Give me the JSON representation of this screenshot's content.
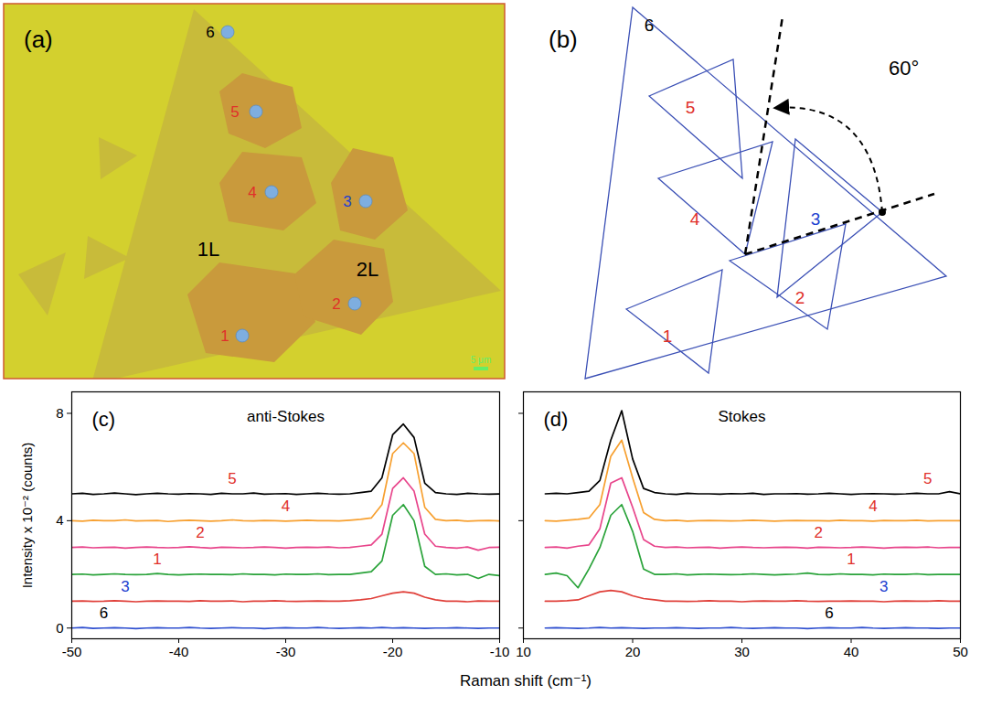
{
  "panel_a": {
    "type": "image",
    "label": "(a)",
    "points": [
      {
        "label": "1",
        "color": "#e0302a"
      },
      {
        "label": "2",
        "color": "#e0302a"
      },
      {
        "label": "3",
        "color": "#2040d0"
      },
      {
        "label": "4",
        "color": "#e0302a"
      },
      {
        "label": "5",
        "color": "#e0302a"
      },
      {
        "label": "6",
        "color": "#000000"
      }
    ],
    "regions": [
      "1L",
      "2L"
    ],
    "scale_bar": "5 μm"
  },
  "panel_b": {
    "type": "diagram",
    "label": "(b)",
    "triangles": [
      {
        "label": "1",
        "color": "#e0302a"
      },
      {
        "label": "2",
        "color": "#e0302a"
      },
      {
        "label": "3",
        "color": "#2040d0"
      },
      {
        "label": "4",
        "color": "#e0302a"
      },
      {
        "label": "5",
        "color": "#e0302a"
      },
      {
        "label": "6",
        "color": "#000000"
      }
    ],
    "angle_label": "60°"
  },
  "shared_xlabel": "Raman shift (cm⁻¹)",
  "chart_data": [
    {
      "type": "line",
      "panel_label": "(c)",
      "title": "anti-Stokes",
      "ylabel": "Intensity x 10⁻² (counts)",
      "xlim": [
        -50,
        -10
      ],
      "ylim": [
        -0.4,
        8.8
      ],
      "xticks": [
        -50,
        -40,
        -30,
        -20,
        -10
      ],
      "yticks": [
        0,
        4,
        8
      ],
      "x": [
        -50,
        -49,
        -48,
        -47,
        -46,
        -45,
        -44,
        -43,
        -42,
        -41,
        -40,
        -39,
        -38,
        -37,
        -36,
        -35,
        -34,
        -33,
        -32,
        -31,
        -30,
        -29,
        -28,
        -27,
        -26,
        -25,
        -24,
        -23,
        -22,
        -21,
        -20,
        -19,
        -18,
        -17,
        -16,
        -15,
        -14,
        -13,
        -12,
        -11,
        -10
      ],
      "series": [
        {
          "name": "5",
          "color": "#000000",
          "values": [
            5.0,
            5.02,
            4.98,
            5.0,
            5.03,
            5.0,
            4.97,
            5.0,
            5.02,
            5.0,
            4.99,
            5.01,
            5.0,
            4.98,
            5.02,
            5.0,
            5.0,
            5.03,
            4.99,
            5.0,
            5.01,
            4.98,
            5.0,
            5.02,
            5.0,
            4.99,
            5.0,
            5.05,
            5.1,
            5.6,
            7.2,
            7.6,
            7.1,
            5.4,
            5.05,
            5.0,
            4.98,
            5.02,
            5.0,
            4.99,
            5.0
          ]
        },
        {
          "name": "4",
          "color": "#f7a030",
          "values": [
            4.0,
            3.98,
            4.02,
            4.0,
            4.0,
            4.03,
            3.99,
            4.0,
            4.01,
            3.97,
            4.0,
            4.02,
            4.0,
            3.98,
            4.0,
            4.03,
            4.0,
            3.99,
            4.01,
            4.0,
            3.98,
            4.0,
            4.02,
            4.0,
            4.0,
            3.99,
            4.02,
            4.05,
            4.1,
            4.6,
            6.5,
            6.9,
            6.5,
            4.5,
            4.05,
            4.0,
            4.02,
            3.98,
            4.0,
            4.01,
            3.99
          ]
        },
        {
          "name": "2",
          "color": "#e8458b",
          "values": [
            3.0,
            3.02,
            2.99,
            3.0,
            3.01,
            2.98,
            3.0,
            3.02,
            3.0,
            2.99,
            3.0,
            3.03,
            3.0,
            2.98,
            3.01,
            3.0,
            2.99,
            3.0,
            3.02,
            3.0,
            2.98,
            3.0,
            3.01,
            3.0,
            3.02,
            2.99,
            3.0,
            3.05,
            3.1,
            3.5,
            5.2,
            5.6,
            5.1,
            3.5,
            3.05,
            3.0,
            2.98,
            3.02,
            2.9,
            3.0,
            3.01
          ]
        },
        {
          "name": "1",
          "color": "#2aa33a",
          "values": [
            2.0,
            2.01,
            1.98,
            2.0,
            2.02,
            2.0,
            1.99,
            2.0,
            2.03,
            2.0,
            1.98,
            2.0,
            2.01,
            2.0,
            2.0,
            1.99,
            2.02,
            2.0,
            2.0,
            1.98,
            2.01,
            2.0,
            2.0,
            2.02,
            1.99,
            2.0,
            2.0,
            2.05,
            2.1,
            2.5,
            4.2,
            4.6,
            4.0,
            2.3,
            2.0,
            2.02,
            1.98,
            2.0,
            1.85,
            2.0,
            1.95
          ]
        },
        {
          "name": "3",
          "color": "#e0403a",
          "values": [
            1.0,
            1.01,
            0.99,
            1.0,
            1.02,
            1.0,
            0.98,
            1.0,
            1.01,
            1.0,
            1.0,
            0.99,
            1.02,
            1.0,
            1.0,
            1.01,
            0.98,
            1.0,
            1.0,
            1.02,
            1.0,
            0.99,
            1.0,
            1.01,
            1.0,
            1.0,
            1.02,
            1.05,
            1.1,
            1.2,
            1.3,
            1.35,
            1.3,
            1.15,
            1.05,
            1.0,
            1.0,
            0.98,
            1.01,
            1.0,
            1.0
          ]
        },
        {
          "name": "6",
          "color": "#3050d0",
          "values": [
            0.0,
            0.02,
            -0.01,
            0.0,
            0.01,
            0.0,
            -0.02,
            0.0,
            0.01,
            0.0,
            0.0,
            0.02,
            0.0,
            -0.01,
            0.0,
            0.01,
            0.0,
            0.0,
            -0.02,
            0.0,
            0.01,
            0.0,
            0.0,
            0.02,
            0.0,
            -0.01,
            0.0,
            0.01,
            0.0,
            0.02,
            0.0,
            0.01,
            0.0,
            -0.01,
            0.0,
            0.0,
            0.01,
            0.0,
            -0.01,
            0.0,
            0.0
          ]
        }
      ],
      "annotations": [
        {
          "text": "5",
          "x": -35,
          "y": 5.55,
          "color": "#e0302a"
        },
        {
          "text": "4",
          "x": -30,
          "y": 4.55,
          "color": "#e0302a"
        },
        {
          "text": "2",
          "x": -38,
          "y": 3.55,
          "color": "#e0302a"
        },
        {
          "text": "1",
          "x": -42,
          "y": 2.55,
          "color": "#e0302a"
        },
        {
          "text": "3",
          "x": -45,
          "y": 1.55,
          "color": "#2040d0"
        },
        {
          "text": "6",
          "x": -47,
          "y": 0.55,
          "color": "#000000"
        }
      ]
    },
    {
      "type": "line",
      "panel_label": "(d)",
      "title": "Stokes",
      "xlim": [
        10,
        50
      ],
      "ylim": [
        -0.4,
        8.8
      ],
      "xticks": [
        10,
        20,
        30,
        40,
        50
      ],
      "yticks": [
        0,
        4,
        8
      ],
      "tick_labels": "x",
      "x": [
        12,
        13,
        14,
        15,
        16,
        17,
        18,
        19,
        20,
        21,
        22,
        23,
        24,
        25,
        26,
        27,
        28,
        29,
        30,
        31,
        32,
        33,
        34,
        35,
        36,
        37,
        38,
        39,
        40,
        41,
        42,
        43,
        44,
        45,
        46,
        47,
        48,
        49,
        50
      ],
      "series": [
        {
          "name": "5",
          "color": "#000000",
          "values": [
            5.0,
            5.02,
            5.0,
            5.05,
            5.1,
            5.5,
            7.0,
            8.1,
            6.3,
            5.2,
            5.05,
            5.0,
            4.98,
            5.02,
            5.0,
            5.0,
            4.99,
            5.01,
            5.0,
            5.02,
            4.98,
            5.0,
            5.0,
            5.01,
            4.99,
            5.0,
            5.02,
            5.0,
            4.98,
            5.0,
            5.01,
            5.0,
            4.99,
            5.0,
            5.02,
            5.0,
            5.0,
            5.08,
            5.0
          ]
        },
        {
          "name": "4",
          "color": "#f7a030",
          "values": [
            4.0,
            3.98,
            4.02,
            4.05,
            4.1,
            4.6,
            6.4,
            7.0,
            5.6,
            4.3,
            4.05,
            4.0,
            4.02,
            3.98,
            4.0,
            4.01,
            4.0,
            3.99,
            4.0,
            4.02,
            4.0,
            3.98,
            4.0,
            4.01,
            4.0,
            4.0,
            3.99,
            4.02,
            4.0,
            4.0,
            3.98,
            4.01,
            4.0,
            4.0,
            4.02,
            3.99,
            4.0,
            4.0,
            4.0
          ]
        },
        {
          "name": "2",
          "color": "#e8458b",
          "values": [
            3.0,
            3.02,
            2.98,
            3.05,
            3.1,
            3.7,
            5.4,
            5.6,
            4.5,
            3.3,
            3.05,
            3.0,
            3.02,
            2.99,
            3.0,
            3.01,
            2.98,
            3.0,
            3.02,
            3.0,
            2.99,
            3.0,
            3.01,
            3.0,
            2.98,
            3.01,
            3.0,
            2.99,
            3.0,
            3.02,
            3.0,
            2.98,
            3.0,
            3.01,
            3.0,
            3.02,
            2.99,
            3.0,
            3.0
          ]
        },
        {
          "name": "1",
          "color": "#2aa33a",
          "values": [
            2.0,
            2.05,
            1.95,
            1.5,
            2.2,
            3.0,
            4.2,
            4.6,
            3.6,
            2.2,
            2.0,
            2.0,
            2.02,
            1.98,
            2.0,
            2.01,
            2.0,
            1.99,
            2.0,
            2.02,
            2.0,
            1.98,
            2.0,
            2.01,
            2.05,
            2.0,
            1.99,
            2.02,
            2.0,
            2.0,
            1.98,
            2.01,
            2.0,
            2.0,
            2.02,
            1.99,
            2.0,
            2.0,
            2.0
          ]
        },
        {
          "name": "3",
          "color": "#e0403a",
          "values": [
            1.0,
            1.0,
            1.02,
            1.05,
            1.2,
            1.35,
            1.4,
            1.35,
            1.2,
            1.1,
            1.05,
            1.0,
            1.0,
            0.99,
            1.0,
            1.02,
            1.0,
            1.0,
            0.98,
            1.0,
            1.01,
            1.0,
            1.0,
            1.02,
            1.0,
            0.99,
            1.0,
            1.0,
            1.01,
            1.0,
            1.0,
            0.98,
            1.0,
            1.01,
            1.0,
            1.0,
            1.02,
            1.0,
            1.0
          ]
        },
        {
          "name": "6",
          "color": "#3050d0",
          "values": [
            0.0,
            0.01,
            0.0,
            -0.01,
            0.0,
            0.02,
            0.0,
            0.01,
            0.0,
            -0.01,
            0.0,
            0.0,
            0.01,
            0.0,
            -0.01,
            0.0,
            0.0,
            0.02,
            0.0,
            -0.01,
            0.0,
            0.01,
            0.0,
            0.0,
            -0.02,
            0.0,
            0.01,
            0.0,
            0.0,
            0.02,
            0.0,
            -0.01,
            0.0,
            0.01,
            0.0,
            0.0,
            -0.01,
            0.0,
            0.0
          ]
        }
      ],
      "annotations": [
        {
          "text": "5",
          "x": 47,
          "y": 5.55,
          "color": "#e0302a"
        },
        {
          "text": "4",
          "x": 42,
          "y": 4.55,
          "color": "#e0302a"
        },
        {
          "text": "2",
          "x": 37,
          "y": 3.55,
          "color": "#e0302a"
        },
        {
          "text": "1",
          "x": 40,
          "y": 2.55,
          "color": "#e0302a"
        },
        {
          "text": "3",
          "x": 43,
          "y": 1.55,
          "color": "#2040d0"
        },
        {
          "text": "6",
          "x": 38,
          "y": 0.55,
          "color": "#000000"
        }
      ]
    }
  ]
}
